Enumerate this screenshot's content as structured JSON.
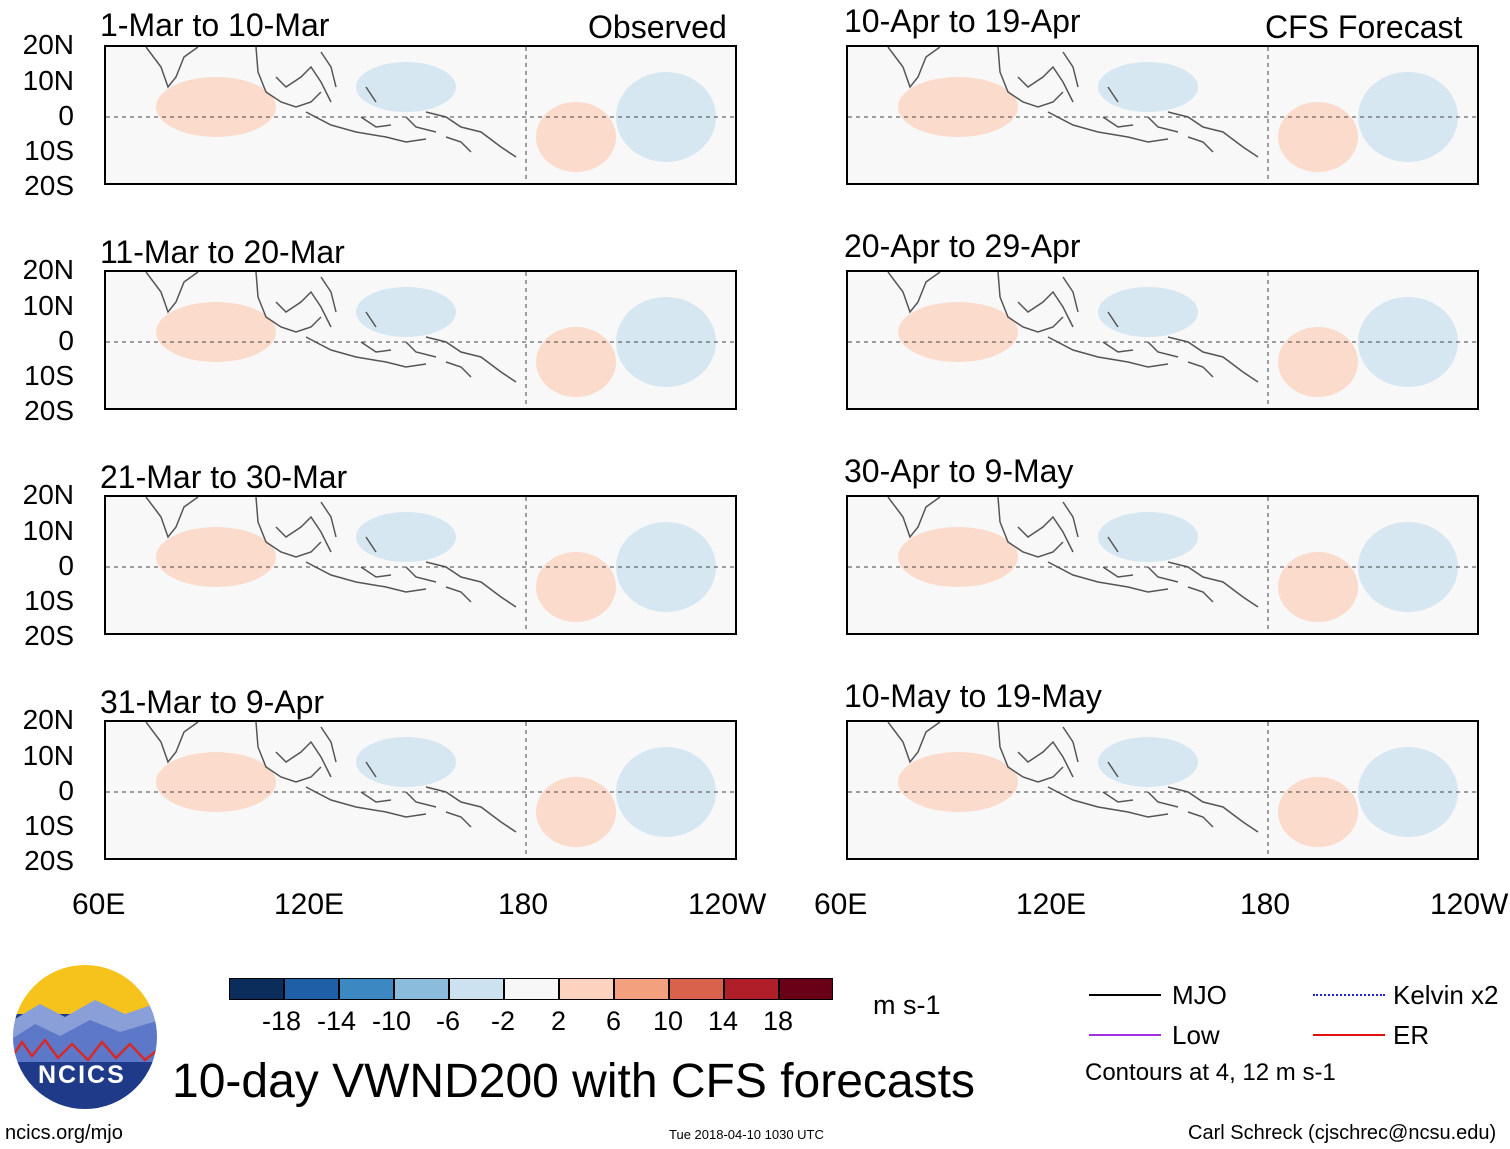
{
  "colors": {
    "mjo": "#000000",
    "low": "#a030e0",
    "kelvin": "#2020d0",
    "er": "#e01010",
    "bar": [
      "#0b2d5c",
      "#1f5fa8",
      "#3c88c3",
      "#8cbcdc",
      "#cde2f0",
      "#f7f7f7",
      "#fbd3bf",
      "#f2a07d",
      "#d9624c",
      "#b01e2a",
      "#6a0018"
    ]
  },
  "columns": {
    "left": {
      "label": "Observed"
    },
    "right": {
      "label": "CFS Forecast"
    }
  },
  "panels": {
    "left": [
      {
        "title": "1-Mar to 10-Mar"
      },
      {
        "title": "11-Mar to 20-Mar"
      },
      {
        "title": "21-Mar to 30-Mar"
      },
      {
        "title": "31-Mar to 9-Apr"
      }
    ],
    "right": [
      {
        "title": "10-Apr to 19-Apr"
      },
      {
        "title": "20-Apr to 29-Apr"
      },
      {
        "title": "30-Apr to 9-May"
      },
      {
        "title": "10-May to 19-May"
      }
    ]
  },
  "axes": {
    "lat_labels": [
      "20N",
      "10N",
      "0",
      "10S",
      "20S"
    ],
    "lon_labels": [
      "60E",
      "120E",
      "180",
      "120W"
    ]
  },
  "colorbar": {
    "labels": [
      "-18",
      "-14",
      "-10",
      "-6",
      "-2",
      "2",
      "6",
      "10",
      "14",
      "18"
    ],
    "unit": "m s-1"
  },
  "legend": {
    "mjo": "MJO",
    "low": "Low",
    "kelvin": "Kelvin x2",
    "er": "ER",
    "note": "Contours at 4, 12 m s-1"
  },
  "footer": {
    "title": "10-day VWND200 with CFS forecasts",
    "logo_text": "NCICS",
    "url": "ncics.org/mjo",
    "timestamp": "Tue 2018-04-10 1030 UTC",
    "author": "Carl Schreck (cjschrec@ncsu.edu)"
  }
}
